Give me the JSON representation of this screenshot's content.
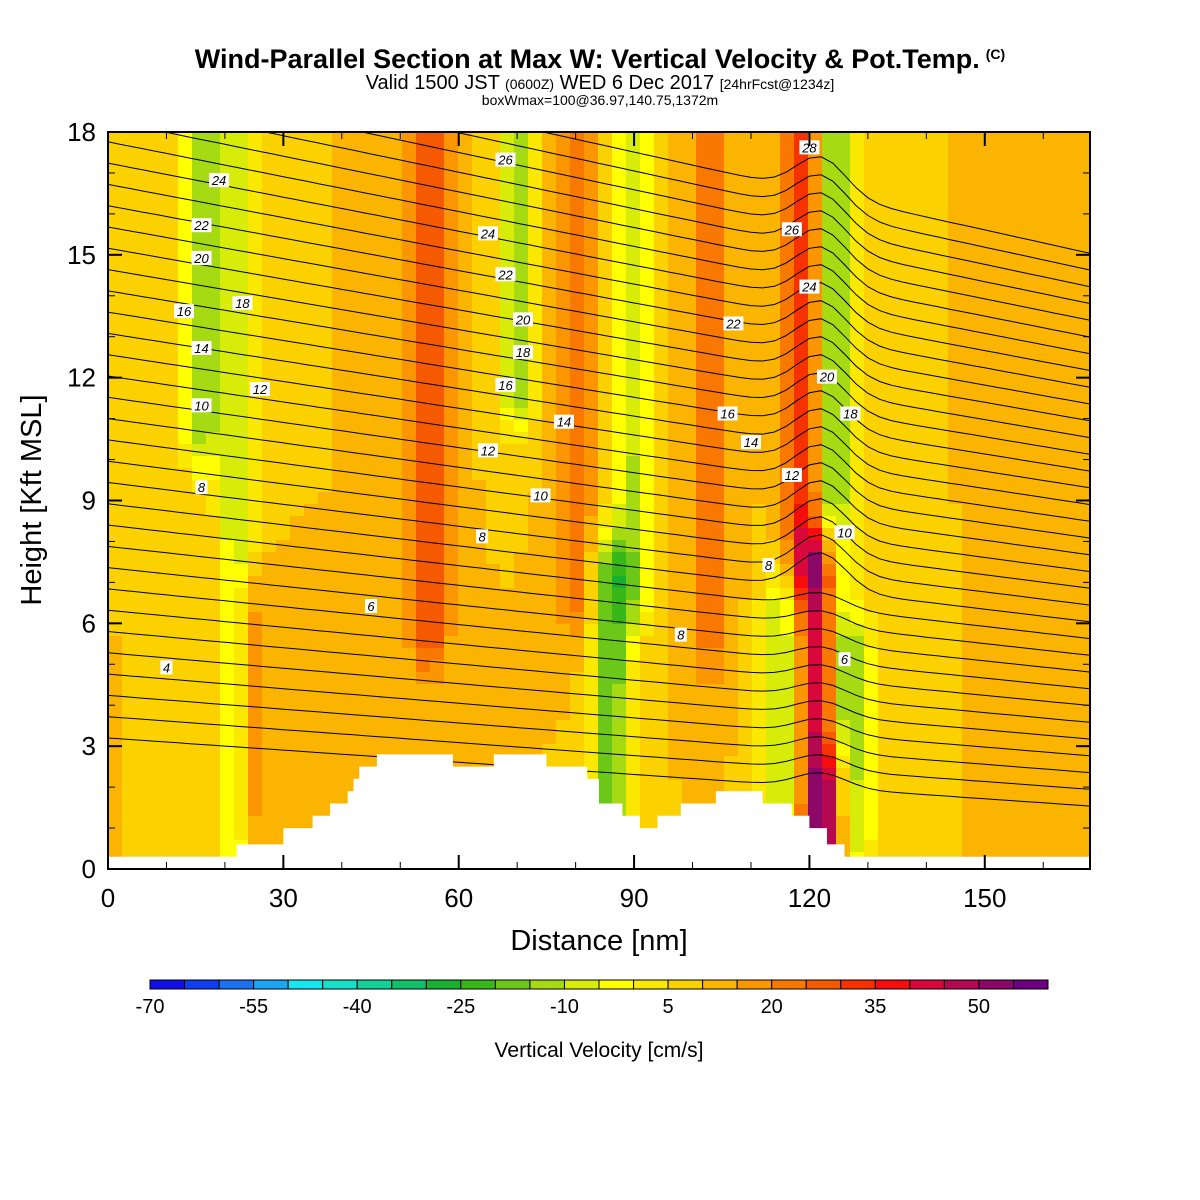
{
  "header": {
    "title": "Wind-Parallel Section at Max W: Vertical Velocity & Pot.Temp.",
    "copyright_mark": "(C)",
    "subtitle_valid": "Valid 1500 JST",
    "subtitle_utc": "(0600Z)",
    "subtitle_date": "WED 6 Dec 2017",
    "subtitle_fcst": "[24hrFcst@1234z]",
    "subtitle_box": "boxWmax=100@36.97,140.75,1372m"
  },
  "colorbar": {
    "title": "Vertical Velocity [cm/s]",
    "colors": [
      "#0f0fe6",
      "#0f3ef0",
      "#1a72f2",
      "#1aa6f2",
      "#17e6f0",
      "#17e0c8",
      "#12d096",
      "#10c06a",
      "#18b030",
      "#38b818",
      "#6cc818",
      "#a6da12",
      "#d8ec0a",
      "#ffff00",
      "#fbe800",
      "#fbd200",
      "#fbb400",
      "#fb9600",
      "#f87800",
      "#f55a00",
      "#f53200",
      "#f50c0c",
      "#d8083c",
      "#b40850",
      "#8c0868",
      "#6c0080"
    ],
    "tick_labels": [
      "-70",
      "-55",
      "-40",
      "-25",
      "-10",
      "5",
      "20",
      "35",
      "50"
    ]
  },
  "chart_data": {
    "type": "heatmap",
    "title": "Wind-Parallel Section at Max W: Vertical Velocity & Pot.Temp.",
    "xlabel": "Distance [nm]",
    "ylabel": "Height [Kft MSL]",
    "xlim": [
      0,
      168
    ],
    "ylim": [
      0,
      18
    ],
    "x_ticks": [
      0,
      30,
      60,
      90,
      120,
      150
    ],
    "y_ticks": [
      0,
      3,
      6,
      9,
      12,
      15,
      18
    ],
    "colorbar_range": [
      -75,
      55
    ],
    "colorbar_step": 5,
    "base_value": 5,
    "vertical_velocity_features": [
      {
        "x": 22,
        "y_min": 0,
        "y_max": 18,
        "value": -15
      },
      {
        "x": 16,
        "y_min": 11,
        "y_max": 18,
        "value": -20
      },
      {
        "x": 24,
        "y_min": 1.5,
        "y_max": 6,
        "value": 20
      },
      {
        "x": 55,
        "y_min": 6,
        "y_max": 18,
        "value": 25
      },
      {
        "x": 70,
        "y_min": 12,
        "y_max": 18,
        "value": -20
      },
      {
        "x": 80,
        "y_min": 7,
        "y_max": 18,
        "value": 20
      },
      {
        "x": 86,
        "y_min": 2,
        "y_max": 7,
        "value": -25
      },
      {
        "x": 90,
        "y_min": 7,
        "y_max": 18,
        "value": -15
      },
      {
        "x": 103,
        "y_min": 6,
        "y_max": 18,
        "value": 20
      },
      {
        "x": 115,
        "y_min": 2,
        "y_max": 6,
        "value": -15
      },
      {
        "x": 119,
        "y_min": 8,
        "y_max": 18,
        "value": 30
      },
      {
        "x": 122,
        "y_min": 0.8,
        "y_max": 7,
        "value": 55
      },
      {
        "x": 124,
        "y_min": 4,
        "y_max": 18,
        "value": -25
      },
      {
        "x": 128,
        "y_min": 1,
        "y_max": 5,
        "value": -15
      }
    ],
    "terrain": [
      [
        0,
        0.3
      ],
      [
        20,
        0.3
      ],
      [
        22,
        0.6
      ],
      [
        28,
        0.6
      ],
      [
        30,
        1.0
      ],
      [
        33,
        1.0
      ],
      [
        35,
        1.3
      ],
      [
        38,
        1.6
      ],
      [
        41,
        1.9
      ],
      [
        42,
        2.2
      ],
      [
        43,
        2.5
      ],
      [
        45,
        2.5
      ],
      [
        46,
        2.8
      ],
      [
        58,
        2.8
      ],
      [
        59,
        2.5
      ],
      [
        65,
        2.5
      ],
      [
        66,
        2.8
      ],
      [
        74,
        2.8
      ],
      [
        75,
        2.5
      ],
      [
        81,
        2.5
      ],
      [
        82,
        2.2
      ],
      [
        84,
        1.6
      ],
      [
        87,
        1.6
      ],
      [
        88,
        1.3
      ],
      [
        91,
        1.0
      ],
      [
        94,
        1.3
      ],
      [
        98,
        1.6
      ],
      [
        103,
        1.6
      ],
      [
        104,
        1.9
      ],
      [
        111,
        1.9
      ],
      [
        112,
        1.6
      ],
      [
        117,
        1.3
      ],
      [
        120,
        1.0
      ],
      [
        123,
        0.6
      ],
      [
        126,
        0.3
      ],
      [
        168,
        0.3
      ]
    ],
    "potential_temperature_contour_labels": [
      {
        "label": "4",
        "x": 10,
        "y": 4.9
      },
      {
        "label": "6",
        "x": 45,
        "y": 6.4
      },
      {
        "label": "8",
        "x": 16,
        "y": 9.3
      },
      {
        "label": "10",
        "x": 16,
        "y": 11.3
      },
      {
        "label": "12",
        "x": 26,
        "y": 11.7
      },
      {
        "label": "14",
        "x": 16,
        "y": 12.7
      },
      {
        "label": "16",
        "x": 13,
        "y": 13.6
      },
      {
        "label": "18",
        "x": 23,
        "y": 13.8
      },
      {
        "label": "20",
        "x": 16,
        "y": 14.9
      },
      {
        "label": "22",
        "x": 16,
        "y": 15.7
      },
      {
        "label": "24",
        "x": 19,
        "y": 16.8
      },
      {
        "label": "26",
        "x": 68,
        "y": 17.3
      },
      {
        "label": "24",
        "x": 65,
        "y": 15.5
      },
      {
        "label": "22",
        "x": 68,
        "y": 14.5
      },
      {
        "label": "20",
        "x": 71,
        "y": 13.4
      },
      {
        "label": "18",
        "x": 71,
        "y": 12.6
      },
      {
        "label": "16",
        "x": 68,
        "y": 11.8
      },
      {
        "label": "14",
        "x": 78,
        "y": 10.9
      },
      {
        "label": "12",
        "x": 65,
        "y": 10.2
      },
      {
        "label": "10",
        "x": 74,
        "y": 9.1
      },
      {
        "label": "8",
        "x": 64,
        "y": 8.1
      },
      {
        "label": "8",
        "x": 98,
        "y": 5.7
      },
      {
        "label": "8",
        "x": 113,
        "y": 7.4
      },
      {
        "label": "6",
        "x": 126,
        "y": 5.1
      },
      {
        "label": "10",
        "x": 126,
        "y": 8.2
      },
      {
        "label": "12",
        "x": 117,
        "y": 9.6
      },
      {
        "label": "14",
        "x": 110,
        "y": 10.4
      },
      {
        "label": "16",
        "x": 106,
        "y": 11.1
      },
      {
        "label": "18",
        "x": 127,
        "y": 11.1
      },
      {
        "label": "20",
        "x": 123,
        "y": 12.0
      },
      {
        "label": "22",
        "x": 107,
        "y": 13.3
      },
      {
        "label": "24",
        "x": 120,
        "y": 14.2
      },
      {
        "label": "26",
        "x": 117,
        "y": 15.6
      },
      {
        "label": "28",
        "x": 120,
        "y": 17.6
      }
    ]
  }
}
